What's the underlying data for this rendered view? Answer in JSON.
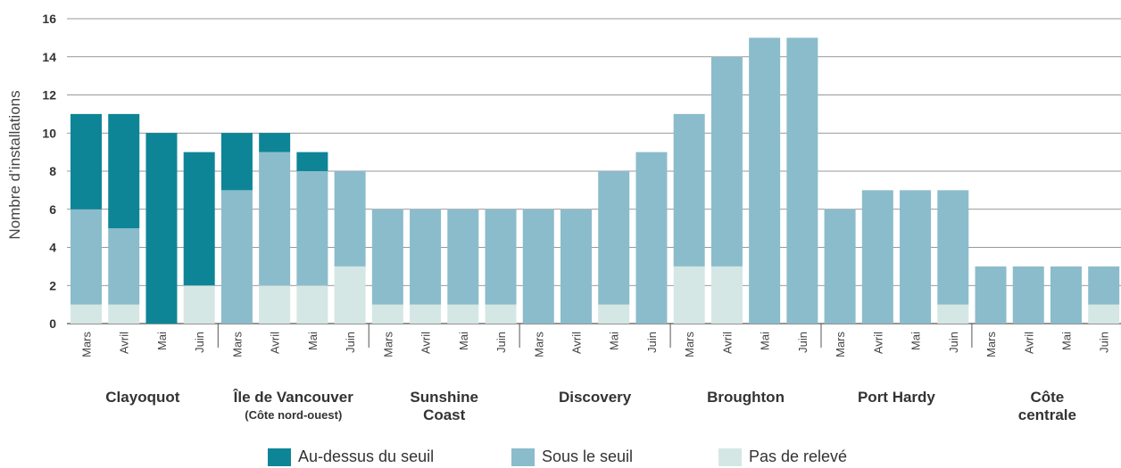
{
  "chart_data": {
    "type": "bar",
    "stacked": true,
    "ylabel": "Nombre d’installations",
    "ylim": [
      0,
      16
    ],
    "yticks": [
      0,
      2,
      4,
      6,
      8,
      10,
      12,
      14,
      16
    ],
    "grid": true,
    "legend_position": "bottom",
    "groups": [
      {
        "name": "Clayoquot",
        "subtitle": "",
        "months": [
          "Mars",
          "Avril",
          "Mai",
          "Juin"
        ]
      },
      {
        "name": "Île de Vancouver",
        "subtitle": "(Côte nord-ouest)",
        "months": [
          "Mars",
          "Avril",
          "Mai",
          "Juin"
        ]
      },
      {
        "name": "Sunshine Coast",
        "subtitle": "",
        "months": [
          "Mars",
          "Avril",
          "Mai",
          "Juin"
        ]
      },
      {
        "name": "Discovery",
        "subtitle": "",
        "months": [
          "Mars",
          "Avril",
          "Mai",
          "Juin"
        ]
      },
      {
        "name": "Broughton",
        "subtitle": "",
        "months": [
          "Mars",
          "Avril",
          "Mai",
          "Juin"
        ]
      },
      {
        "name": "Port Hardy",
        "subtitle": "",
        "months": [
          "Mars",
          "Avril",
          "Mai",
          "Juin"
        ]
      },
      {
        "name": "Côte centrale",
        "subtitle": "",
        "months": [
          "Mars",
          "Avril",
          "Mai",
          "Juin"
        ]
      }
    ],
    "series": [
      {
        "name": "Pas de relevé",
        "color": "#d5e7e4",
        "values": [
          1,
          1,
          0,
          2,
          0,
          2,
          2,
          3,
          1,
          1,
          1,
          1,
          0,
          0,
          1,
          0,
          3,
          3,
          0,
          0,
          0,
          0,
          0,
          1,
          0,
          0,
          0,
          1
        ]
      },
      {
        "name": "Sous le seuil",
        "color": "#8bbccb",
        "values": [
          5,
          4,
          0,
          0,
          7,
          7,
          6,
          5,
          5,
          5,
          5,
          5,
          6,
          6,
          7,
          9,
          8,
          11,
          15,
          15,
          6,
          7,
          7,
          6,
          3,
          3,
          3,
          2
        ]
      },
      {
        "name": "Au-dessus du seuil",
        "color": "#0e8597",
        "values": [
          5,
          6,
          10,
          7,
          3,
          1,
          1,
          0,
          0,
          0,
          0,
          0,
          0,
          0,
          0,
          0,
          0,
          0,
          0,
          0,
          0,
          0,
          0,
          0,
          0,
          0,
          0,
          0
        ]
      }
    ],
    "legend": [
      {
        "label": "Au-dessus du seuil",
        "color": "#0e8597"
      },
      {
        "label": "Sous le seuil",
        "color": "#8bbccb"
      },
      {
        "label": "Pas de relevé",
        "color": "#d5e7e4"
      }
    ]
  }
}
